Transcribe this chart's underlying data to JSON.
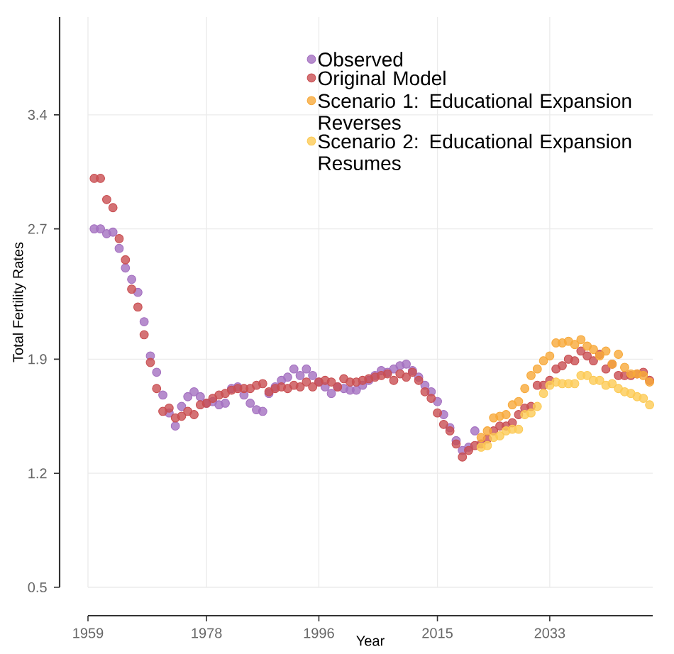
{
  "chart_data": {
    "type": "scatter",
    "xlabel": "Year",
    "ylabel": "Total Fertility Rates",
    "xlim": [
      1959,
      2049.5
    ],
    "ylim": [
      0.5,
      4.0
    ],
    "xticks": [
      1959,
      1978,
      1996,
      2015,
      2033
    ],
    "yticks": [
      0.5,
      1.2,
      1.9,
      2.7,
      3.4
    ],
    "grid": true,
    "legend": "top right",
    "series": [
      {
        "name": "Observed",
        "color": "#a470c0",
        "x": [
          1960,
          1961,
          1962,
          1963,
          1964,
          1965,
          1966,
          1967,
          1968,
          1969,
          1970,
          1971,
          1972,
          1973,
          1974,
          1975,
          1976,
          1977,
          1978,
          1979,
          1980,
          1981,
          1982,
          1983,
          1984,
          1985,
          1986,
          1987,
          1988,
          1989,
          1990,
          1991,
          1992,
          1993,
          1994,
          1995,
          1996,
          1997,
          1998,
          1999,
          2000,
          2001,
          2002,
          2003,
          2004,
          2005,
          2006,
          2007,
          2008,
          2009,
          2010,
          2011,
          2012,
          2013,
          2014,
          2015,
          2016,
          2017,
          2018,
          2019,
          2020,
          2021
        ],
        "values": [
          2.7,
          2.7,
          2.67,
          2.68,
          2.58,
          2.46,
          2.39,
          2.31,
          2.13,
          1.92,
          1.82,
          1.68,
          1.57,
          1.49,
          1.61,
          1.67,
          1.7,
          1.67,
          1.63,
          1.64,
          1.62,
          1.63,
          1.72,
          1.73,
          1.68,
          1.63,
          1.59,
          1.58,
          1.69,
          1.73,
          1.77,
          1.79,
          1.84,
          1.8,
          1.84,
          1.8,
          1.76,
          1.73,
          1.69,
          1.73,
          1.72,
          1.71,
          1.71,
          1.74,
          1.77,
          1.8,
          1.83,
          1.82,
          1.84,
          1.86,
          1.87,
          1.83,
          1.79,
          1.74,
          1.7,
          1.64,
          1.56,
          1.48,
          1.4,
          1.34,
          1.36,
          1.46
        ]
      },
      {
        "name": "Original Model",
        "color": "#c94f52",
        "x": [
          1960,
          1961,
          1962,
          1963,
          1964,
          1965,
          1966,
          1967,
          1968,
          1969,
          1970,
          1971,
          1972,
          1973,
          1974,
          1975,
          1976,
          1977,
          1978,
          1979,
          1980,
          1981,
          1982,
          1983,
          1984,
          1985,
          1986,
          1987,
          1988,
          1989,
          1990,
          1991,
          1992,
          1993,
          1994,
          1995,
          1996,
          1997,
          1998,
          1999,
          2000,
          2001,
          2002,
          2003,
          2004,
          2005,
          2006,
          2007,
          2008,
          2009,
          2010,
          2011,
          2012,
          2013,
          2014,
          2015,
          2016,
          2017,
          2018,
          2019,
          2020,
          2021,
          2022,
          2023,
          2024,
          2025,
          2026,
          2027,
          2028,
          2029,
          2030,
          2031,
          2032,
          2033,
          2034,
          2035,
          2036,
          2037,
          2038,
          2039,
          2040,
          2041,
          2042,
          2043,
          2044,
          2045,
          2046,
          2047,
          2048,
          2049
        ],
        "values": [
          3.01,
          3.01,
          2.88,
          2.83,
          2.64,
          2.51,
          2.33,
          2.22,
          2.05,
          1.88,
          1.72,
          1.58,
          1.6,
          1.54,
          1.55,
          1.58,
          1.56,
          1.62,
          1.63,
          1.66,
          1.68,
          1.69,
          1.71,
          1.72,
          1.72,
          1.72,
          1.74,
          1.75,
          1.7,
          1.72,
          1.73,
          1.72,
          1.74,
          1.73,
          1.76,
          1.73,
          1.76,
          1.77,
          1.76,
          1.73,
          1.78,
          1.76,
          1.76,
          1.77,
          1.78,
          1.79,
          1.8,
          1.81,
          1.77,
          1.81,
          1.79,
          1.82,
          1.77,
          1.7,
          1.66,
          1.57,
          1.5,
          1.46,
          1.38,
          1.3,
          1.34,
          1.37,
          1.38,
          1.41,
          1.46,
          1.49,
          1.49,
          1.51,
          1.56,
          1.6,
          1.61,
          1.74,
          1.74,
          1.77,
          1.84,
          1.86,
          1.9,
          1.89,
          1.95,
          1.92,
          1.89,
          1.93,
          1.84,
          1.87,
          1.8,
          1.8,
          1.8,
          1.81,
          1.82,
          1.77
        ]
      },
      {
        "name": "Scenario 1: Educational Expansion Reverses",
        "color": "#f7a93a",
        "x": [
          2022,
          2023,
          2024,
          2025,
          2026,
          2027,
          2028,
          2029,
          2030,
          2031,
          2032,
          2033,
          2034,
          2035,
          2036,
          2037,
          2038,
          2039,
          2040,
          2041,
          2042,
          2043,
          2044,
          2045,
          2046,
          2047,
          2048,
          2049
        ],
        "values": [
          1.42,
          1.46,
          1.54,
          1.55,
          1.56,
          1.62,
          1.64,
          1.72,
          1.8,
          1.84,
          1.89,
          1.92,
          2.0,
          2.0,
          2.01,
          1.99,
          2.02,
          1.98,
          1.96,
          1.92,
          1.95,
          1.87,
          1.93,
          1.85,
          1.81,
          1.81,
          1.8,
          1.76
        ]
      },
      {
        "name": "Scenario 2: Educational Expansion Resumes",
        "color": "#fcca55",
        "x": [
          2022,
          2023,
          2024,
          2025,
          2026,
          2027,
          2028,
          2029,
          2030,
          2031,
          2032,
          2033,
          2034,
          2035,
          2036,
          2037,
          2038,
          2039,
          2040,
          2041,
          2042,
          2043,
          2044,
          2045,
          2046,
          2047,
          2048,
          2049
        ],
        "values": [
          1.36,
          1.37,
          1.42,
          1.43,
          1.46,
          1.47,
          1.47,
          1.56,
          1.57,
          1.61,
          1.69,
          1.74,
          1.76,
          1.75,
          1.75,
          1.75,
          1.8,
          1.8,
          1.77,
          1.77,
          1.74,
          1.75,
          1.72,
          1.7,
          1.69,
          1.67,
          1.66,
          1.62
        ]
      }
    ]
  }
}
